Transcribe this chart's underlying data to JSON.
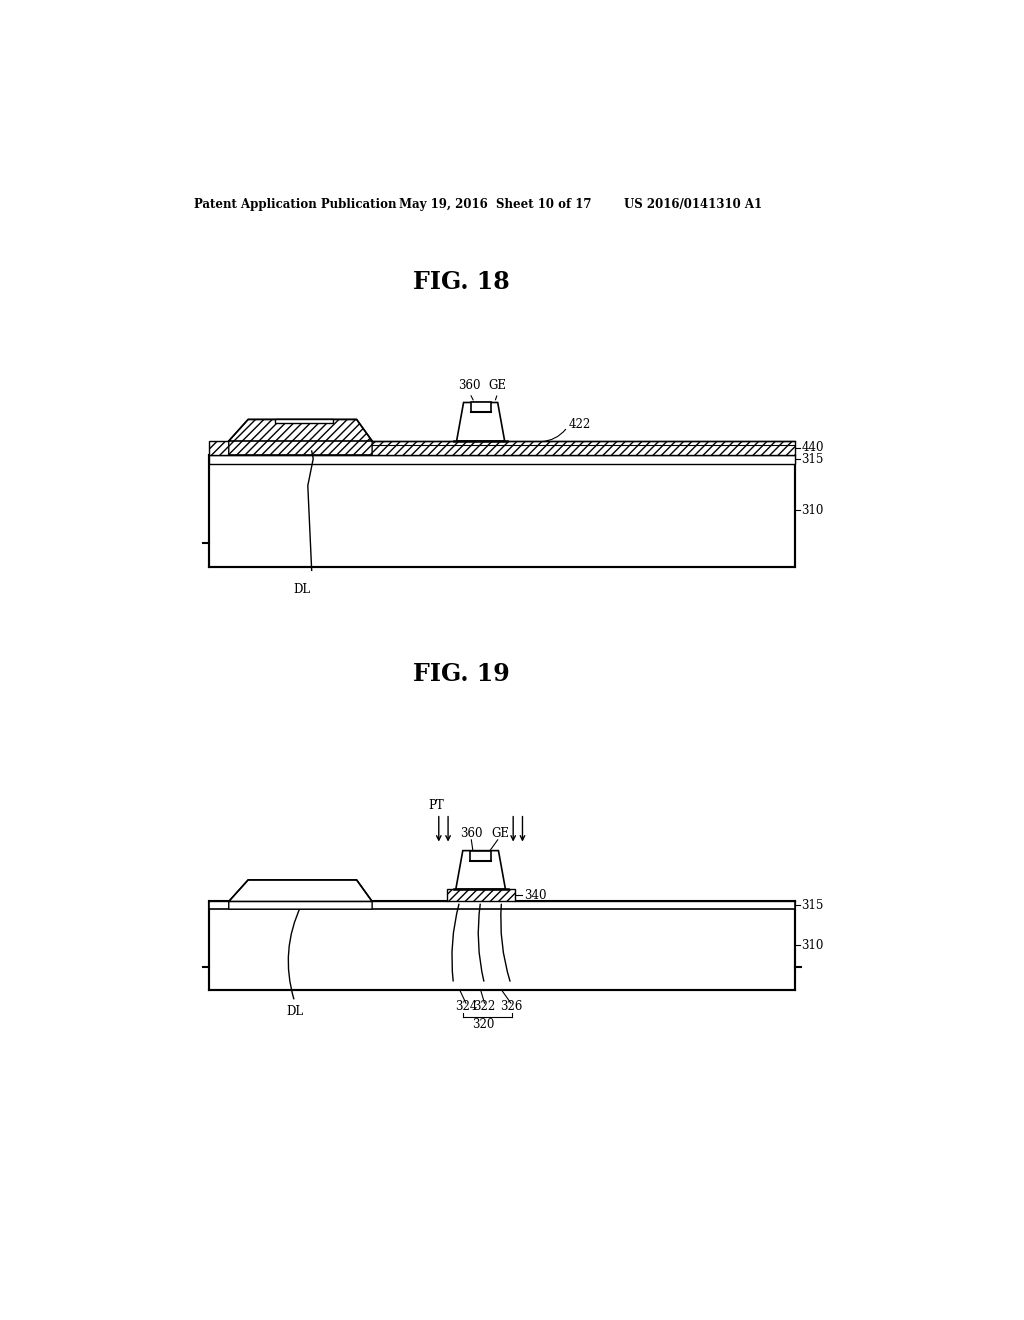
{
  "header_left": "Patent Application Publication",
  "header_mid": "May 19, 2016  Sheet 10 of 17",
  "header_right": "US 2016/0141310 A1",
  "fig18_title": "FIG. 18",
  "fig19_title": "FIG. 19",
  "bg_color": "#ffffff",
  "line_color": "#000000"
}
